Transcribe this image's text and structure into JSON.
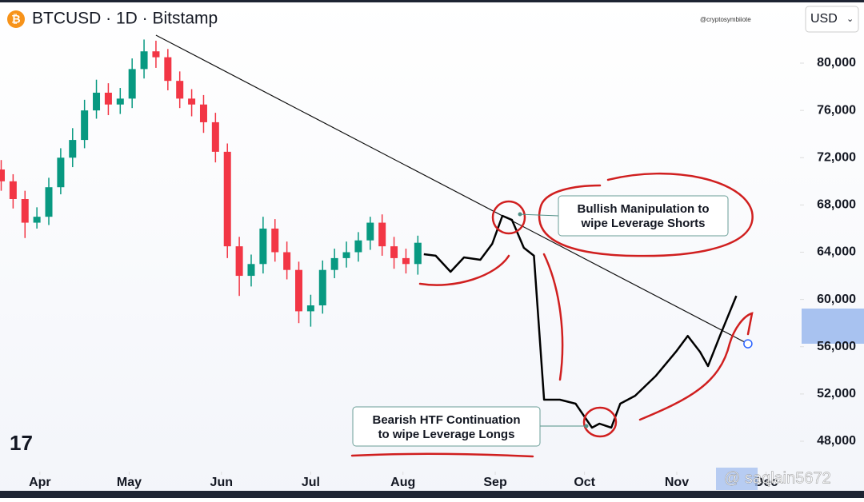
{
  "header": {
    "title": "BTCUSD · 1D · Bitstamp",
    "watermark": "@cryptosymbiiote",
    "currency": "USD"
  },
  "chart_data": {
    "type": "candlestick",
    "x": [
      -13,
      -9,
      -5,
      -1,
      3,
      7,
      11,
      15,
      19,
      23,
      27,
      31,
      35,
      39,
      43,
      47,
      51,
      55,
      59,
      63,
      67,
      71,
      75,
      79,
      83,
      87,
      91,
      95,
      99,
      103,
      107,
      111,
      115,
      119,
      123,
      127
    ],
    "open": [
      71000,
      70000,
      68500,
      66500,
      67000,
      69500,
      72000,
      73500,
      76000,
      77500,
      76500,
      77000,
      79500,
      81000,
      80500,
      78500,
      77000,
      76500,
      75000,
      72500,
      64500,
      62000,
      63000,
      66000,
      64000,
      62500,
      59000,
      59500,
      62500,
      63500,
      64000,
      65000,
      66500,
      64500,
      63500,
      63000
    ],
    "high": [
      71800,
      70600,
      69200,
      67800,
      70300,
      72800,
      74500,
      76900,
      78600,
      78300,
      77900,
      80400,
      82000,
      81900,
      81200,
      79300,
      77800,
      77300,
      75800,
      73200,
      65300,
      63800,
      67000,
      66800,
      64900,
      63200,
      60400,
      63300,
      64300,
      64900,
      65700,
      67000,
      67200,
      65300,
      64300,
      65400
    ],
    "low": [
      69200,
      67700,
      65200,
      66000,
      66300,
      68900,
      71200,
      72800,
      75300,
      75600,
      75700,
      76200,
      78700,
      79600,
      77700,
      76200,
      75500,
      74100,
      71600,
      63500,
      60300,
      61100,
      62200,
      63200,
      61700,
      58000,
      57700,
      58800,
      61800,
      62700,
      63200,
      64200,
      63700,
      62600,
      62200,
      62100
    ],
    "close": [
      70000,
      68500,
      66500,
      67000,
      69500,
      72000,
      73500,
      76000,
      77500,
      76500,
      77000,
      79500,
      81000,
      80500,
      78500,
      77000,
      76500,
      75000,
      72500,
      64500,
      62000,
      63000,
      66000,
      64000,
      62500,
      59000,
      59500,
      62500,
      63500,
      64000,
      65000,
      66500,
      64500,
      63500,
      63000,
      64800
    ],
    "up_color": "#089981",
    "down_color": "#f23645",
    "xlim": [
      -13.4,
      255.4
    ],
    "xticks": [
      {
        "value": 0,
        "label": "Apr"
      },
      {
        "value": 30,
        "label": "May"
      },
      {
        "value": 61,
        "label": "Jun"
      },
      {
        "value": 91,
        "label": "Jul"
      },
      {
        "value": 122,
        "label": "Aug"
      },
      {
        "value": 153,
        "label": "Sep"
      },
      {
        "value": 183,
        "label": "Oct"
      },
      {
        "value": 214,
        "label": "Nov"
      },
      {
        "value": 244,
        "label": "Dec"
      }
    ],
    "ylim": [
      45430,
      85345
    ],
    "yticks": [
      {
        "value": 48000,
        "label": "48,000"
      },
      {
        "value": 52000,
        "label": "52,000"
      },
      {
        "value": 56000,
        "label": "56,000"
      },
      {
        "value": 60000,
        "label": "60,000"
      },
      {
        "value": 64000,
        "label": "64,000"
      },
      {
        "value": 68000,
        "label": "68,000"
      },
      {
        "value": 72000,
        "label": "72,000"
      },
      {
        "value": 76000,
        "label": "76,000"
      },
      {
        "value": 80000,
        "label": "80,000"
      }
    ],
    "trendline": {
      "color": "#111111",
      "x": [
        39,
        237.9
      ],
      "values": [
        82370,
        56250
      ]
    },
    "projection": {
      "color": "#000000",
      "x": [
        129,
        133,
        138,
        142.5,
        148,
        152,
        155.4,
        158.6,
        162.6,
        166,
        169.4,
        174.7,
        180,
        185.5,
        188,
        192,
        195,
        200,
        207,
        213.7,
        217.7,
        221.8,
        224.5,
        228.5,
        234
      ],
      "values": [
        63830,
        63700,
        62340,
        63560,
        63360,
        64710,
        67080,
        66740,
        64370,
        63700,
        51520,
        51520,
        51180,
        49150,
        49490,
        49150,
        51180,
        51850,
        53540,
        55570,
        56920,
        55570,
        54360,
        56920,
        60310
      ]
    },
    "annotations": [
      {
        "lines": [
          "Bullish Manipulation to",
          "wipe Leverage Shorts"
        ]
      },
      {
        "lines": [
          "Bearish HTF Continuation",
          "to wipe Leverage Longs"
        ]
      }
    ]
  },
  "footer": {
    "watermark": "@ saqlain5672"
  }
}
